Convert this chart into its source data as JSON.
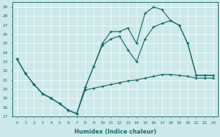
{
  "xlabel": "Humidex (Indice chaleur)",
  "bg_color": "#cde8e8",
  "line_color": "#1a6b6b",
  "xlim": [
    -0.5,
    23.5
  ],
  "ylim": [
    17,
    29.5
  ],
  "yticks": [
    17,
    18,
    19,
    20,
    21,
    22,
    23,
    24,
    25,
    26,
    27,
    28,
    29
  ],
  "xticks": [
    0,
    1,
    2,
    3,
    4,
    5,
    6,
    7,
    8,
    9,
    10,
    11,
    12,
    13,
    14,
    15,
    16,
    17,
    18,
    19,
    20,
    21,
    22,
    23
  ],
  "y_zigzag": [
    23.3,
    21.7,
    20.5,
    19.5,
    19.0,
    18.4,
    17.7,
    17.3,
    20.2,
    22.5,
    25.0,
    26.3,
    26.3,
    26.7,
    25.0,
    28.3,
    29.0,
    28.7,
    27.5,
    27.0,
    25.0,
    21.5,
    21.5,
    21.5
  ],
  "y_upper": [
    23.3,
    21.7,
    20.5,
    19.5,
    19.0,
    18.4,
    17.7,
    17.3,
    20.2,
    22.5,
    24.8,
    25.5,
    25.8,
    24.3,
    23.0,
    25.5,
    26.8,
    27.2,
    27.5,
    27.0,
    25.0,
    21.5,
    21.5,
    21.5
  ],
  "y_lower": [
    23.3,
    21.7,
    20.5,
    19.5,
    19.0,
    18.4,
    17.7,
    17.3,
    19.9,
    20.1,
    20.3,
    20.5,
    20.7,
    20.9,
    21.0,
    21.2,
    21.4,
    21.6,
    21.6,
    21.5,
    21.4,
    21.2,
    21.2,
    21.2
  ]
}
